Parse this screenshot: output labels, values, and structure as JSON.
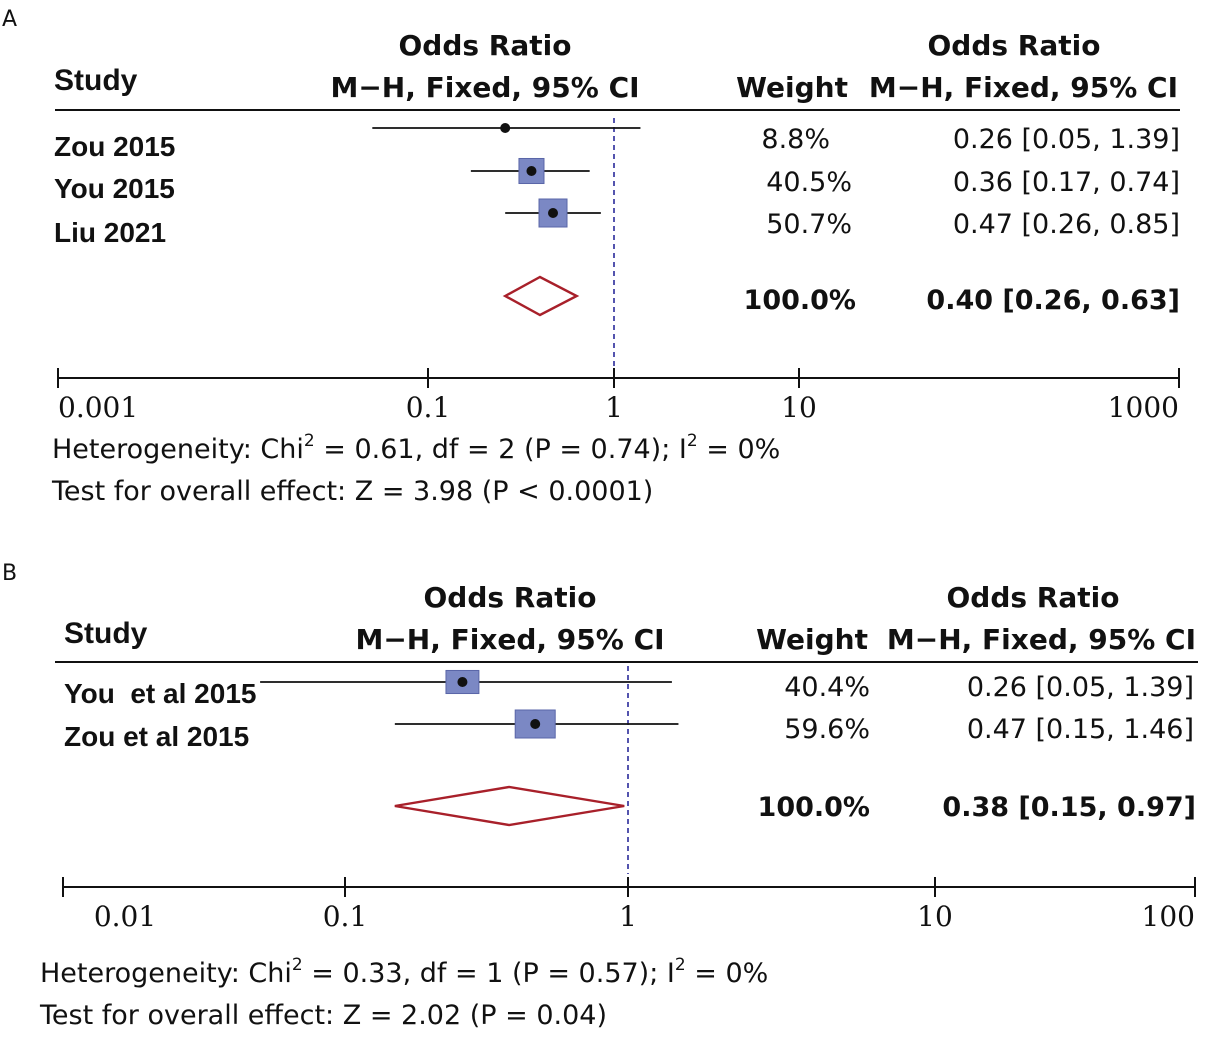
{
  "chart_data": [
    {
      "type": "forest",
      "panel_label": "A",
      "header": {
        "study": "Study",
        "plot_title_line1": "Odds Ratio",
        "plot_title_line2": "M−H, Fixed, 95% CI",
        "weight": "Weight",
        "ci_title_line1": "Odds Ratio",
        "ci_title_line2": "M−H, Fixed, 95% CI"
      },
      "xscale": "log",
      "xlim": [
        0.001,
        1000
      ],
      "ticks": [
        0.001,
        0.1,
        1,
        10,
        1000
      ],
      "tick_labels": [
        "0.001",
        "0.1",
        "1",
        "10",
        "1000"
      ],
      "reference_line": 1,
      "studies": [
        {
          "name": "Zou 2015",
          "or": 0.26,
          "lower": 0.05,
          "upper": 1.39,
          "weight": 8.8,
          "weight_label": "8.8%",
          "ci_label": "0.26 [0.05, 1.39]"
        },
        {
          "name": "You 2015",
          "or": 0.36,
          "lower": 0.17,
          "upper": 0.74,
          "weight": 40.5,
          "weight_label": "40.5%",
          "ci_label": "0.36 [0.17, 0.74]"
        },
        {
          "name": "Liu 2021",
          "or": 0.47,
          "lower": 0.26,
          "upper": 0.85,
          "weight": 50.7,
          "weight_label": "50.7%",
          "ci_label": "0.47 [0.26, 0.85]"
        }
      ],
      "pooled": {
        "or": 0.4,
        "lower": 0.26,
        "upper": 0.63,
        "weight_label": "100.0%",
        "ci_label": "0.40 [0.26, 0.63]"
      },
      "heterogeneity": {
        "prefix": "Heterogeneity: Chi",
        "sup1": "2",
        "middle": " = 0.61, df = 2 (P = 0.74); I",
        "sup2": "2",
        "suffix": " = 0%"
      },
      "overall_effect": "Test for overall effect: Z = 3.98 (P < 0.0001)"
    },
    {
      "type": "forest",
      "panel_label": "B",
      "header": {
        "study": "Study",
        "plot_title_line1": "Odds Ratio",
        "plot_title_line2": "M−H, Fixed, 95% CI",
        "weight": "Weight",
        "ci_title_line1": "Odds Ratio",
        "ci_title_line2": "M−H, Fixed, 95% CI"
      },
      "xscale": "log",
      "xlim": [
        0.01,
        100
      ],
      "ticks": [
        0.01,
        0.1,
        1,
        10,
        100
      ],
      "tick_labels": [
        "0.01",
        "0.1",
        "1",
        "10",
        "100"
      ],
      "reference_line": 1,
      "studies": [
        {
          "name": "You  et al 2015",
          "or": 0.26,
          "lower": 0.05,
          "upper": 1.39,
          "weight": 40.4,
          "weight_label": "40.4%",
          "ci_label": "0.26 [0.05, 1.39]"
        },
        {
          "name": "Zou et al 2015",
          "or": 0.47,
          "lower": 0.15,
          "upper": 1.46,
          "weight": 59.6,
          "weight_label": "59.6%",
          "ci_label": "0.47 [0.15, 1.46]"
        }
      ],
      "pooled": {
        "or": 0.38,
        "lower": 0.15,
        "upper": 0.97,
        "weight_label": "100.0%",
        "ci_label": "0.38 [0.15, 0.97]"
      },
      "heterogeneity": {
        "prefix": "Heterogeneity: Chi",
        "sup1": "2",
        "middle": " = 0.33, df = 1 (P = 0.57); I",
        "sup2": "2",
        "suffix": " = 0%"
      },
      "overall_effect": "Test for overall effect: Z = 2.02 (P = 0.04)"
    }
  ],
  "colors": {
    "box_fill": "#7b88c4",
    "box_stroke": "#5a66a8",
    "diamond": "#a8202a",
    "ref_line": "#2a2a9a",
    "line": "#111111"
  }
}
